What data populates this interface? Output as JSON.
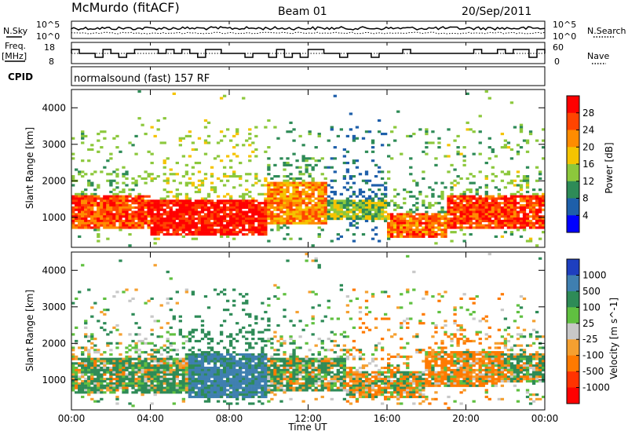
{
  "header": {
    "station": "McMurdo (fitACF)",
    "beam": "Beam 01",
    "date": "20/Sep/2011",
    "nsky_label": "N.Sky",
    "nsky_ticks": [
      "10^5",
      "10^0"
    ],
    "nsearch_label": "N.Search",
    "freq_label_1": "Freq.",
    "freq_label_2": "[MHz]",
    "freq_ticks": [
      "18",
      "8"
    ],
    "nave_label": "Nave",
    "nave_ticks": [
      "60",
      "0"
    ],
    "cpid_label": "CPID",
    "cpid_text": "normalsound (fast) 157 RF"
  },
  "chart_data": [
    {
      "type": "heatmap",
      "name": "power",
      "ylabel": "Slant Range [km]",
      "yticks": [
        "4000",
        "3000",
        "2000",
        "1000"
      ],
      "ylim": [
        180,
        4500
      ],
      "colorbar_label": "Power [dB]",
      "colorbar_ticks": [
        "28",
        "24",
        "20",
        "16",
        "12",
        "8",
        "4"
      ],
      "colorbar_colors": [
        "#ff0000",
        "#ff4400",
        "#ff8c00",
        "#f5c400",
        "#8cc83c",
        "#2e8b57",
        "#1e5faa",
        "#0000ff"
      ],
      "echo_bands": [
        {
          "from_h": 0,
          "to_h": 4,
          "low_km": 700,
          "high_km": 1600,
          "power_db": 26
        },
        {
          "from_h": 4,
          "to_h": 10,
          "low_km": 500,
          "high_km": 1500,
          "power_db": 30
        },
        {
          "from_h": 10,
          "to_h": 13,
          "low_km": 800,
          "high_km": 2000,
          "power_db": 22
        },
        {
          "from_h": 13,
          "to_h": 16,
          "low_km": 900,
          "high_km": 1500,
          "power_db": 14
        },
        {
          "from_h": 16,
          "to_h": 19,
          "low_km": 400,
          "high_km": 1100,
          "power_db": 24
        },
        {
          "from_h": 19,
          "to_h": 24,
          "low_km": 700,
          "high_km": 1600,
          "power_db": 27
        }
      ]
    },
    {
      "type": "heatmap",
      "name": "velocity",
      "xlabel": "Time UT",
      "ylabel": "Slant Range [km]",
      "xticks": [
        "00:00",
        "04:00",
        "08:00",
        "12:00",
        "16:00",
        "20:00",
        "00:00"
      ],
      "yticks": [
        "4000",
        "3000",
        "2000",
        "1000"
      ],
      "ylim": [
        180,
        4500
      ],
      "colorbar_label": "Velocity [m s^-1]",
      "colorbar_ticks": [
        "1000",
        "500",
        "100",
        "25",
        "-25",
        "-100",
        "-500",
        "-1000"
      ],
      "colorbar_colors": [
        "#1e3fbf",
        "#3f7fb0",
        "#2e8b57",
        "#60c040",
        "#c8c8c8",
        "#f5a030",
        "#ff7a00",
        "#ff3300",
        "#ff0000"
      ],
      "echo_bands": [
        {
          "from_h": 0,
          "to_h": 6,
          "low_km": 600,
          "high_km": 1600,
          "velocity": 150
        },
        {
          "from_h": 6,
          "to_h": 10,
          "low_km": 500,
          "high_km": 1700,
          "velocity": 600
        },
        {
          "from_h": 10,
          "to_h": 14,
          "low_km": 700,
          "high_km": 1600,
          "velocity": 120
        },
        {
          "from_h": 14,
          "to_h": 18,
          "low_km": 500,
          "high_km": 1200,
          "velocity": -80
        },
        {
          "from_h": 18,
          "to_h": 22,
          "low_km": 800,
          "high_km": 1800,
          "velocity": -120
        },
        {
          "from_h": 22,
          "to_h": 24,
          "low_km": 900,
          "high_km": 1700,
          "velocity": 100
        }
      ]
    }
  ]
}
